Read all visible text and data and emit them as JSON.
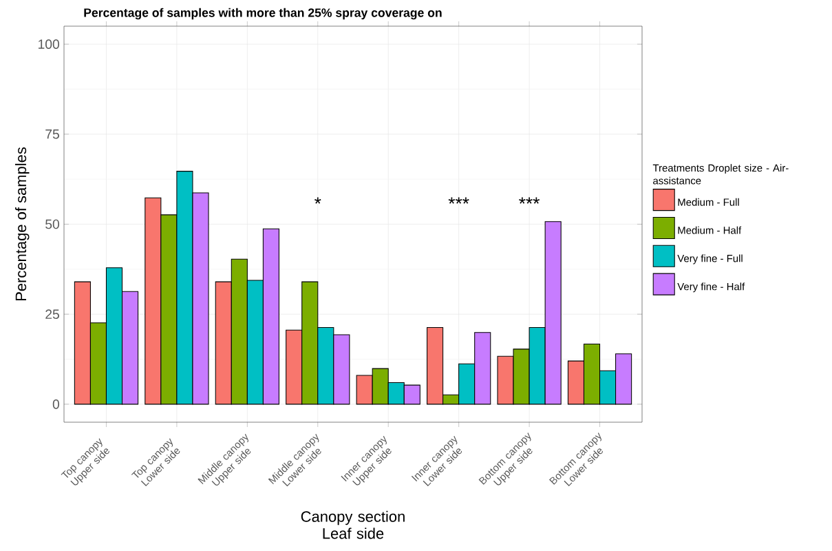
{
  "chart_data": {
    "type": "bar",
    "title": "Percentage of samples with more than 25% spray coverage on",
    "xlabel": "Canopy section Leaf side",
    "ylabel": "Percentage of samples",
    "legend_title": "Treatments Droplet size - Air-assistance",
    "categories": [
      "Top canopy Upper side",
      "Top canopy Lower side",
      "Middle canopy Upper side",
      "Middle canopy Lower side",
      "Inner canopy Upper side",
      "Inner canopy Lower side",
      "Bottom canopy Upper side",
      "Bottom canopy Lower side"
    ],
    "series": [
      {
        "name": "Medium - Full",
        "color": "#f8766d",
        "values": [
          34.0,
          57.3,
          34.0,
          20.6,
          8.0,
          21.3,
          13.3,
          12.0
        ]
      },
      {
        "name": "Medium - Half",
        "color": "#7cae00",
        "values": [
          22.6,
          52.6,
          40.3,
          34.0,
          9.9,
          2.6,
          15.3,
          16.7
        ]
      },
      {
        "name": "Very fine - Full",
        "color": "#00bfc4",
        "values": [
          37.9,
          64.7,
          34.4,
          21.3,
          6.0,
          11.2,
          21.3,
          9.3
        ]
      },
      {
        "name": "Very fine - Half",
        "color": "#c77cff",
        "values": [
          31.3,
          58.7,
          48.7,
          19.3,
          5.3,
          19.9,
          50.7,
          14.0
        ]
      }
    ],
    "ylim": [
      -5,
      105
    ],
    "yticks": [
      0,
      25,
      50,
      75,
      100
    ],
    "grid": true,
    "legend": "right",
    "annotations": [
      "*",
      "***",
      "***"
    ]
  }
}
